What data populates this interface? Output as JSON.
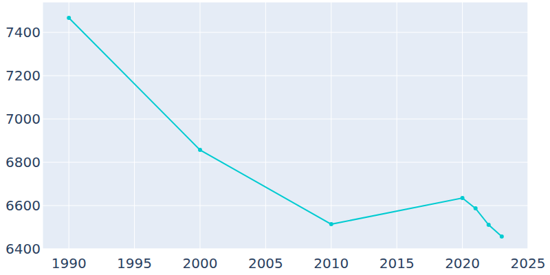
{
  "chart_data": {
    "type": "line",
    "x": [
      1990,
      2000,
      2010,
      2020,
      2021,
      2022,
      2023
    ],
    "values": [
      7467,
      6857,
      6514,
      6635,
      6587,
      6511,
      6457
    ],
    "color": "#00cbd1",
    "marker": "circle",
    "xlim": [
      1988,
      2025
    ],
    "xticks": [
      1990,
      1995,
      2000,
      2005,
      2010,
      2015,
      2020,
      2025
    ],
    "ylim": [
      6400,
      7540
    ],
    "yticks": [
      6400,
      6600,
      6800,
      7000,
      7200,
      7400
    ],
    "grid": true
  }
}
